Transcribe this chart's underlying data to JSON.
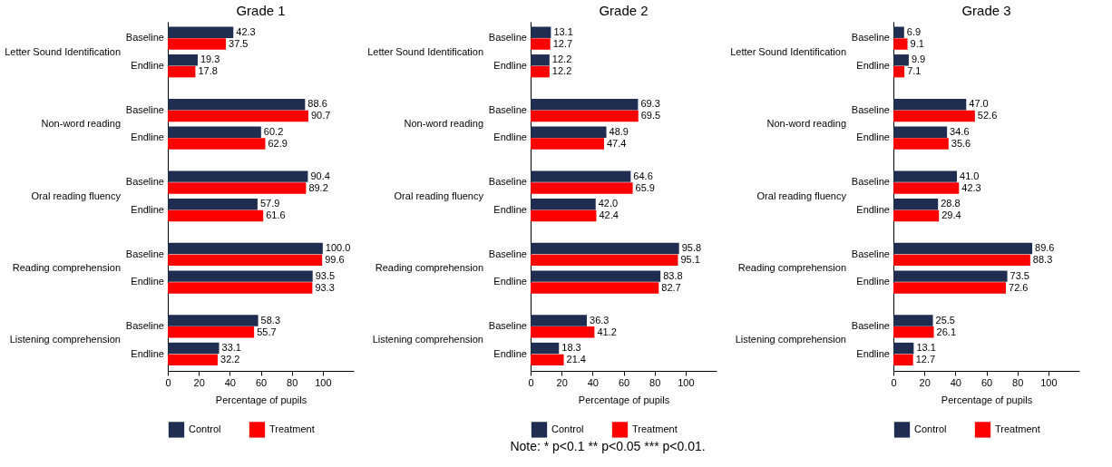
{
  "chart_data": [
    {
      "type": "bar",
      "orientation": "horizontal",
      "title": "Grade 1",
      "xlabel": "Percentage of pupils",
      "xlim": [
        0,
        120
      ],
      "xticks": [
        0,
        20,
        40,
        60,
        80,
        100
      ],
      "grid": false,
      "legend": "bottom",
      "categories": [
        "Baseline",
        "Endline",
        "Baseline",
        "Endline",
        "Baseline",
        "Endline",
        "Baseline",
        "Endline",
        "Baseline",
        "Endline"
      ],
      "annotations": [
        "Letter Sound Identification",
        "Non-word reading",
        "Oral reading fluency",
        "Reading comprehension",
        "Listening comprehension"
      ],
      "series": [
        {
          "name": "Control",
          "color": "#1f2d50",
          "values": [
            42.3,
            19.3,
            88.6,
            60.2,
            90.4,
            57.9,
            100.0,
            93.5,
            58.3,
            33.1
          ],
          "value_labels": [
            "42.3",
            "19.3",
            "88.6",
            "60.2",
            "90.4",
            "57.9",
            "100.0",
            "93.5",
            "58.3",
            "33.1"
          ]
        },
        {
          "name": "Treatment",
          "color": "#ff0000",
          "values": [
            37.5,
            17.8,
            90.7,
            62.9,
            89.2,
            61.6,
            99.6,
            93.3,
            55.7,
            32.2
          ],
          "value_labels": [
            "37.5",
            "17.8",
            "90.7",
            "62.9",
            "89.2",
            "61.6",
            "99.6",
            "93.3",
            "55.7",
            "32.2"
          ]
        }
      ]
    },
    {
      "type": "bar",
      "orientation": "horizontal",
      "title": "Grade 2",
      "xlabel": "Percentage of pupils",
      "xlim": [
        0,
        120
      ],
      "xticks": [
        0,
        20,
        40,
        60,
        80,
        100
      ],
      "grid": false,
      "legend": "bottom",
      "categories": [
        "Baseline",
        "Endline",
        "Baseline",
        "Endline",
        "Baseline",
        "Endline",
        "Baseline",
        "Endline",
        "Baseline",
        "Endline"
      ],
      "annotations": [
        "Letter Sound Identification",
        "Non-word reading",
        "Oral reading fluency",
        "Reading comprehension",
        "Listening comprehension",
        "Note: * p<0.1 ** p<0.05 *** p<0.01."
      ],
      "series": [
        {
          "name": "Control",
          "color": "#1f2d50",
          "values": [
            13.1,
            12.2,
            69.3,
            48.9,
            64.6,
            42.0,
            95.8,
            83.8,
            36.3,
            18.3
          ],
          "value_labels": [
            "13.1",
            "12.2",
            "69.3",
            "48.9",
            "64.6",
            "42.0",
            "95.8",
            "83.8",
            "36.3",
            "18.3"
          ]
        },
        {
          "name": "Treatment",
          "color": "#ff0000",
          "values": [
            12.7,
            12.2,
            69.5,
            47.4,
            65.9,
            42.4,
            95.1,
            82.7,
            41.2,
            21.4
          ],
          "value_labels": [
            "12.7",
            "12.2",
            "69.5",
            "47.4",
            "65.9",
            "42.4",
            "95.1",
            "82.7",
            "41.2",
            "21.4"
          ]
        }
      ]
    },
    {
      "type": "bar",
      "orientation": "horizontal",
      "title": "Grade 3",
      "xlabel": "Percentage of pupils",
      "xlim": [
        0,
        120
      ],
      "xticks": [
        0,
        20,
        40,
        60,
        80,
        100
      ],
      "grid": false,
      "legend": "bottom",
      "categories": [
        "Baseline",
        "Endline",
        "Baseline",
        "Endline",
        "Baseline",
        "Endline",
        "Baseline",
        "Endline",
        "Baseline",
        "Endline"
      ],
      "annotations": [
        "Letter Sound Identification",
        "Non-word reading",
        "Oral reading fluency",
        "Reading comprehension",
        "Listening comprehension"
      ],
      "series": [
        {
          "name": "Control",
          "color": "#1f2d50",
          "values": [
            6.9,
            9.9,
            47.0,
            34.6,
            41.0,
            28.8,
            89.6,
            73.5,
            25.5,
            13.1
          ],
          "value_labels": [
            "6.9",
            "9.9",
            "47.0",
            "34.6",
            "41.0",
            "28.8",
            "89.6",
            "73.5",
            "25.5",
            "13.1"
          ]
        },
        {
          "name": "Treatment",
          "color": "#ff0000",
          "values": [
            9.1,
            7.1,
            52.6,
            35.6,
            42.3,
            29.4,
            88.3,
            72.6,
            26.1,
            12.7
          ],
          "value_labels": [
            "9.1",
            "7.1",
            "52.6",
            "35.6",
            "42.3",
            "29.4",
            "88.3",
            "72.6",
            "26.1",
            "12.7"
          ]
        }
      ]
    }
  ]
}
